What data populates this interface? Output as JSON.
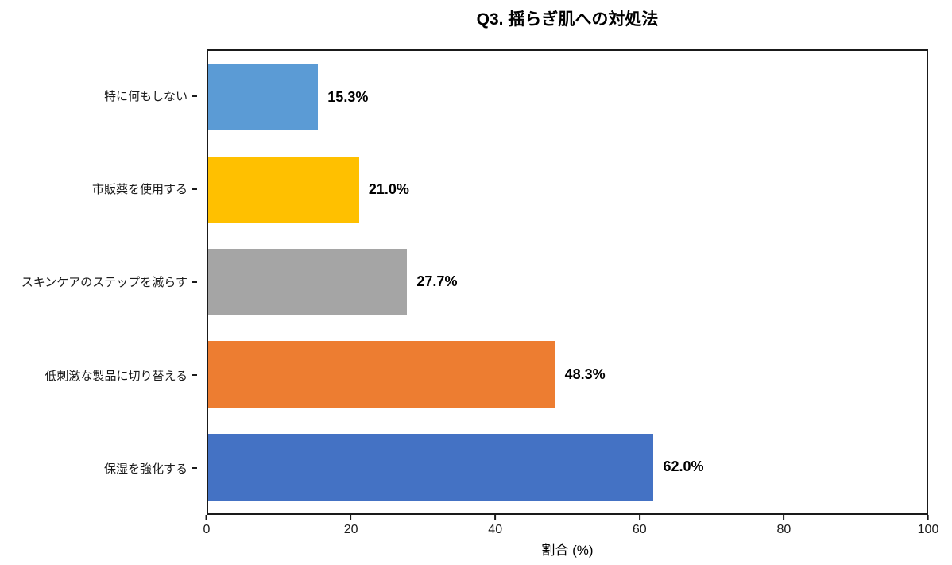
{
  "chart_data": {
    "type": "bar",
    "orientation": "horizontal",
    "title": "Q3. 揺らぎ肌への対処法",
    "xlabel": "割合 (%)",
    "ylabel": "",
    "xlim": [
      0,
      100
    ],
    "xticks": [
      "0",
      "20",
      "40",
      "60",
      "80",
      "100"
    ],
    "grid": false,
    "legend": false,
    "categories": [
      "特に何もしない",
      "市販薬を使用する",
      "スキンケアのステップを減らす",
      "低刺激な製品に切り替える",
      "保湿を強化する"
    ],
    "values": [
      15.3,
      21.0,
      27.7,
      48.3,
      62.0
    ],
    "value_labels": [
      "15.3%",
      "21.0%",
      "27.7%",
      "48.3%",
      "62.0%"
    ],
    "bar_colors": [
      "#5B9BD5",
      "#FFC000",
      "#A5A5A5",
      "#ED7D31",
      "#4472C4"
    ],
    "order_note": "categories listed top-to-bottom as rendered"
  },
  "colors": {
    "background": "#ffffff",
    "frame": "#1a1a1a",
    "text": "#000000"
  }
}
